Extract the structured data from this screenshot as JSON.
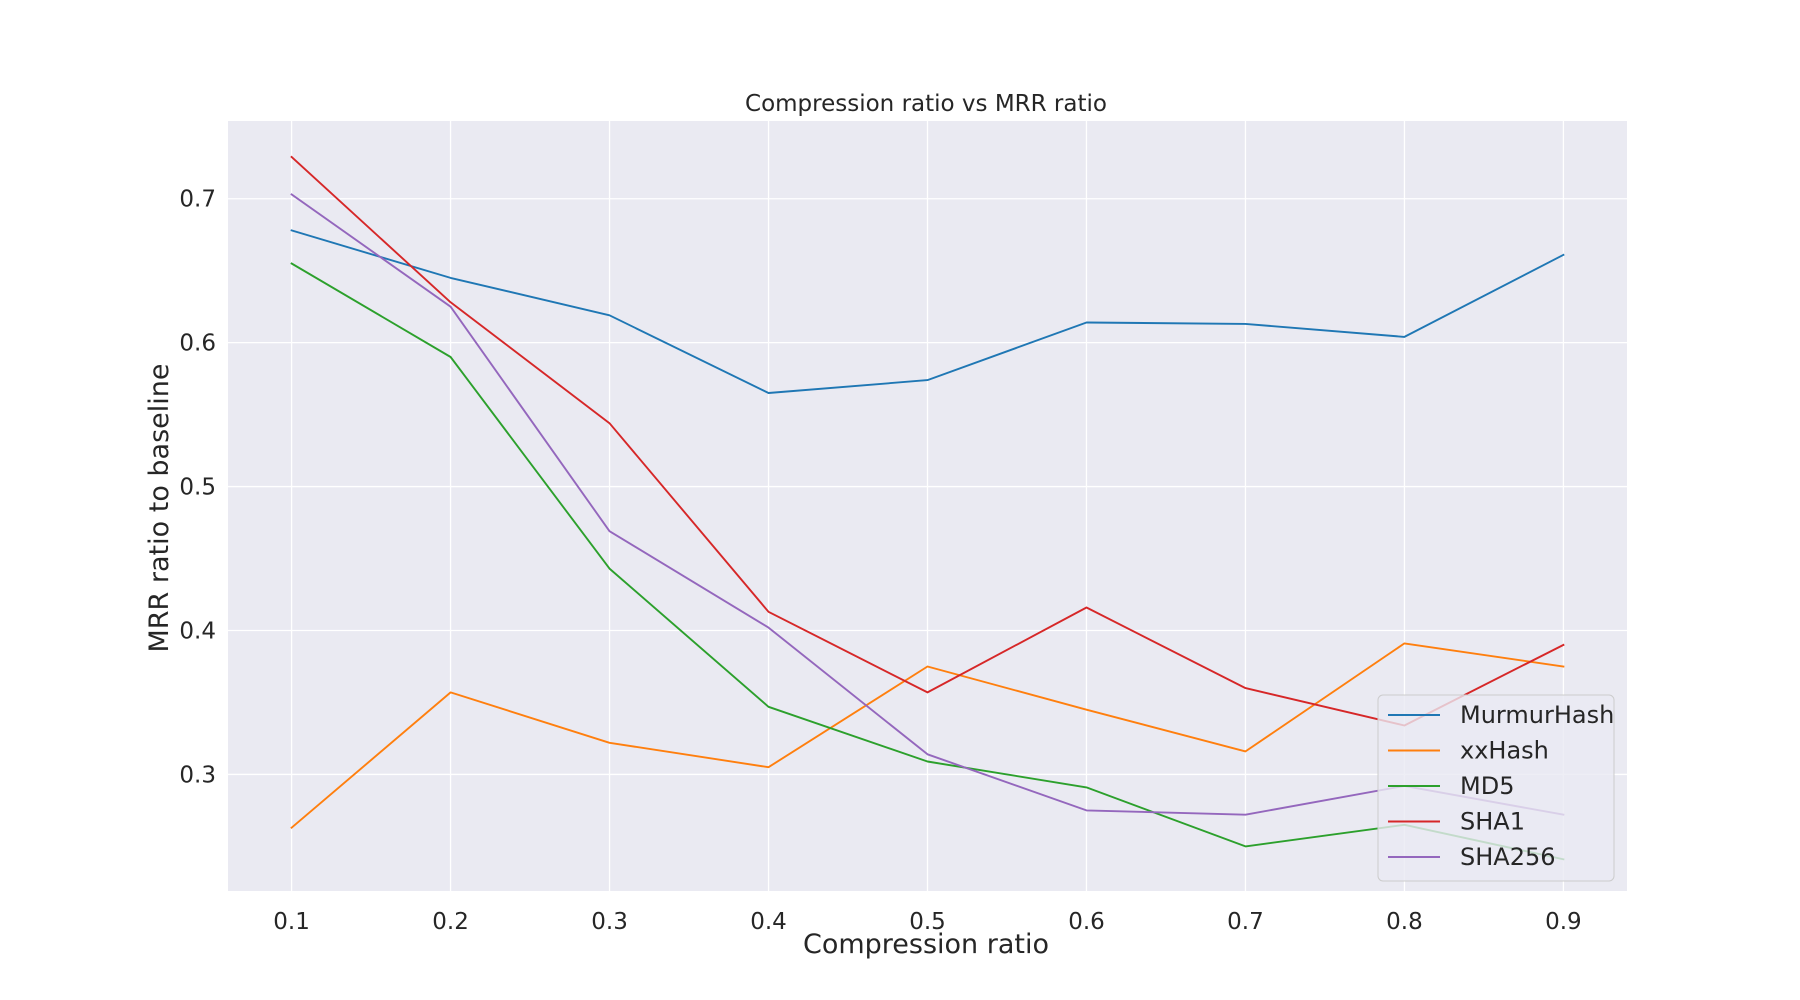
{
  "chart_data": {
    "type": "line",
    "title": "Compression ratio vs MRR ratio",
    "xlabel": "Compression ratio",
    "ylabel": "MRR ratio to baseline",
    "x": [
      0.1,
      0.2,
      0.3,
      0.4,
      0.5,
      0.6,
      0.7,
      0.8,
      0.9
    ],
    "x_ticks": [
      "0.1",
      "0.2",
      "0.3",
      "0.4",
      "0.5",
      "0.6",
      "0.7",
      "0.8",
      "0.9"
    ],
    "y_ticks": [
      0.3,
      0.4,
      0.5,
      0.6,
      0.7
    ],
    "y_tick_labels": [
      "0.3",
      "0.4",
      "0.5",
      "0.6",
      "0.7"
    ],
    "xlim": [
      0.06,
      0.94
    ],
    "ylim": [
      0.219,
      0.754
    ],
    "grid": true,
    "legend_position": "lower-right",
    "series": [
      {
        "name": "MurmurHash",
        "color": "#1f77b4",
        "values": [
          0.678,
          0.645,
          0.619,
          0.565,
          0.574,
          0.614,
          0.613,
          0.604,
          0.661
        ]
      },
      {
        "name": "xxHash",
        "color": "#ff7f0e",
        "values": [
          0.263,
          0.357,
          0.322,
          0.305,
          0.375,
          0.345,
          0.316,
          0.391,
          0.375
        ]
      },
      {
        "name": "MD5",
        "color": "#2ca02c",
        "values": [
          0.655,
          0.59,
          0.443,
          0.347,
          0.309,
          0.291,
          0.25,
          0.265,
          0.241
        ]
      },
      {
        "name": "SHA1",
        "color": "#d62728",
        "values": [
          0.729,
          0.628,
          0.544,
          0.413,
          0.357,
          0.416,
          0.36,
          0.334,
          0.39
        ]
      },
      {
        "name": "SHA256",
        "color": "#9467bd",
        "values": [
          0.703,
          0.625,
          0.469,
          0.402,
          0.314,
          0.275,
          0.272,
          0.292,
          0.272
        ]
      }
    ]
  }
}
